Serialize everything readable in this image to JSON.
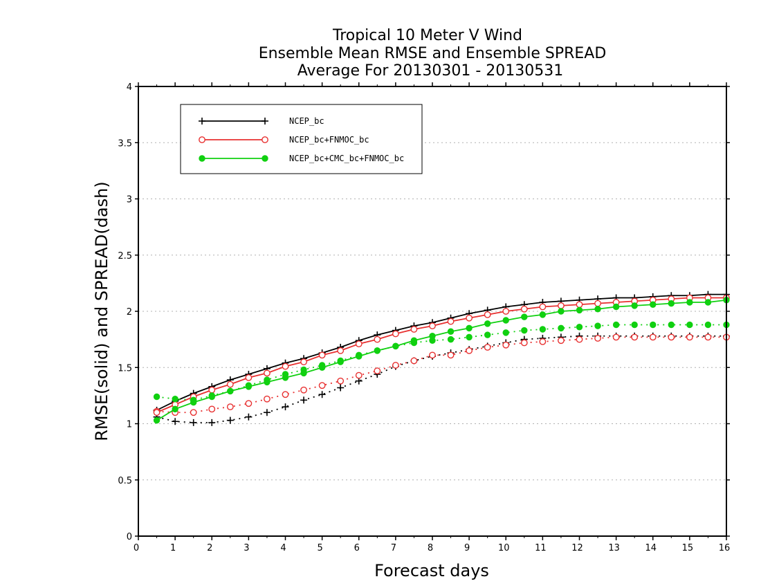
{
  "chart_data": {
    "type": "line",
    "title": [
      "Tropical 10 Meter V Wind",
      "Ensemble Mean RMSE and Ensemble SPREAD",
      "Average For 20130301 - 20130531"
    ],
    "xlabel": "Forecast days",
    "ylabel": "RMSE(solid) and SPREAD(dash)",
    "xlim": [
      0,
      16
    ],
    "ylim": [
      0,
      4
    ],
    "xticks": [
      "0",
      "1",
      "2",
      "3",
      "4",
      "5",
      "6",
      "7",
      "8",
      "9",
      "10",
      "11",
      "12",
      "13",
      "14",
      "15",
      "16"
    ],
    "yticks": [
      "0",
      "0.5",
      "1",
      "1.5",
      "2",
      "2.5",
      "3",
      "3.5",
      "4"
    ],
    "grid": "dotted horizontal",
    "legend_position": "top-left",
    "x": [
      0.5,
      1,
      1.5,
      2,
      2.5,
      3,
      3.5,
      4,
      4.5,
      5,
      5.5,
      6,
      6.5,
      7,
      7.5,
      8,
      8.5,
      9,
      9.5,
      10,
      10.5,
      11,
      11.5,
      12,
      12.5,
      13,
      13.5,
      14,
      14.5,
      15,
      15.5,
      16
    ],
    "series": [
      {
        "name": "NCEP_bc",
        "color": "#000000",
        "marker": "plus",
        "rmse": [
          1.12,
          1.2,
          1.27,
          1.33,
          1.39,
          1.44,
          1.49,
          1.54,
          1.58,
          1.63,
          1.68,
          1.74,
          1.79,
          1.83,
          1.87,
          1.9,
          1.94,
          1.98,
          2.01,
          2.04,
          2.06,
          2.08,
          2.09,
          2.1,
          2.11,
          2.12,
          2.12,
          2.13,
          2.14,
          2.14,
          2.15,
          2.15
        ],
        "spread": [
          1.06,
          1.02,
          1.01,
          1.01,
          1.03,
          1.06,
          1.1,
          1.15,
          1.21,
          1.26,
          1.32,
          1.38,
          1.44,
          1.51,
          1.56,
          1.6,
          1.63,
          1.66,
          1.69,
          1.72,
          1.75,
          1.76,
          1.77,
          1.78,
          1.78,
          1.78,
          1.78,
          1.78,
          1.78,
          1.78,
          1.78,
          1.78
        ]
      },
      {
        "name": "NCEP_bc+FNMOC_bc",
        "color": "#e83030",
        "marker": "open-circle",
        "rmse": [
          1.1,
          1.17,
          1.24,
          1.3,
          1.35,
          1.41,
          1.45,
          1.51,
          1.55,
          1.61,
          1.65,
          1.71,
          1.75,
          1.8,
          1.84,
          1.87,
          1.91,
          1.94,
          1.97,
          2.0,
          2.02,
          2.04,
          2.05,
          2.06,
          2.07,
          2.08,
          2.09,
          2.1,
          2.11,
          2.12,
          2.12,
          2.12
        ],
        "spread": [
          1.11,
          1.1,
          1.1,
          1.13,
          1.15,
          1.18,
          1.22,
          1.26,
          1.3,
          1.34,
          1.38,
          1.43,
          1.47,
          1.52,
          1.56,
          1.61,
          1.61,
          1.65,
          1.68,
          1.7,
          1.72,
          1.73,
          1.74,
          1.75,
          1.76,
          1.77,
          1.77,
          1.77,
          1.77,
          1.77,
          1.77,
          1.77
        ]
      },
      {
        "name": "NCEP_bc+CMC_bc+FNMOC_bc",
        "color": "#10d010",
        "marker": "filled-circle",
        "rmse": [
          1.03,
          1.13,
          1.19,
          1.24,
          1.29,
          1.33,
          1.37,
          1.41,
          1.45,
          1.5,
          1.55,
          1.6,
          1.65,
          1.69,
          1.74,
          1.78,
          1.82,
          1.85,
          1.89,
          1.92,
          1.95,
          1.97,
          2.0,
          2.01,
          2.02,
          2.04,
          2.05,
          2.06,
          2.07,
          2.08,
          2.08,
          2.1
        ],
        "spread": [
          1.24,
          1.22,
          1.21,
          1.25,
          1.29,
          1.34,
          1.39,
          1.44,
          1.48,
          1.52,
          1.56,
          1.61,
          1.65,
          1.69,
          1.72,
          1.74,
          1.75,
          1.77,
          1.79,
          1.81,
          1.83,
          1.84,
          1.85,
          1.86,
          1.87,
          1.88,
          1.88,
          1.88,
          1.88,
          1.88,
          1.88,
          1.88
        ]
      }
    ]
  }
}
